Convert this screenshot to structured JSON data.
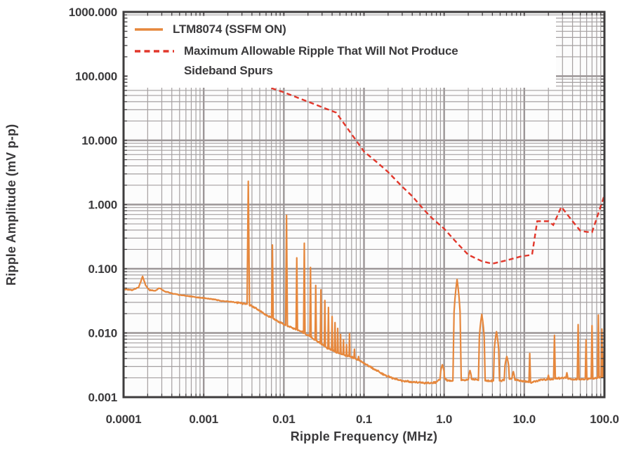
{
  "chart_data": {
    "type": "line",
    "title": "",
    "xlabel": "Ripple Frequency (MHz)",
    "ylabel": "Ripple Amplitude (mV p-p)",
    "x_scale": "log",
    "y_scale": "log",
    "xlim": [
      0.0001,
      100
    ],
    "ylim": [
      0.001,
      1000
    ],
    "x_ticks": [
      "0.0001",
      "0.001",
      "0.01",
      "0.1",
      "1.0",
      "10.0",
      "100.0"
    ],
    "y_ticks": [
      "1000.000",
      "100.000",
      "10.000",
      "1.000",
      "0.100",
      "0.010",
      "0.001"
    ],
    "grid": "log major+minor, full frame border with inward tick stubs",
    "legend_position": "top-left inside plot",
    "series": [
      {
        "name": "LTM8074 (SSFM ON)",
        "color": "#E6873C",
        "style": "solid",
        "baseline": [
          [
            0.0001,
            0.048
          ],
          [
            0.00013,
            0.0465
          ],
          [
            0.000155,
            0.052
          ],
          [
            0.000173,
            0.076
          ],
          [
            0.00019,
            0.054
          ],
          [
            0.00021,
            0.0465
          ],
          [
            0.00025,
            0.0455
          ],
          [
            0.00028,
            0.05
          ],
          [
            0.00033,
            0.044
          ],
          [
            0.0004,
            0.0415
          ],
          [
            0.0005,
            0.039
          ],
          [
            0.00065,
            0.0375
          ],
          [
            0.0008,
            0.036
          ],
          [
            0.001,
            0.035
          ],
          [
            0.0013,
            0.0335
          ],
          [
            0.0017,
            0.0315
          ],
          [
            0.0022,
            0.0305
          ],
          [
            0.0028,
            0.0295
          ],
          [
            0.0036,
            0.028
          ],
          [
            0.0042,
            0.0255
          ],
          [
            0.005,
            0.022
          ],
          [
            0.006,
            0.019
          ],
          [
            0.0072,
            0.017
          ],
          [
            0.009,
            0.0145
          ],
          [
            0.011,
            0.0128
          ],
          [
            0.014,
            0.0115
          ],
          [
            0.018,
            0.01
          ],
          [
            0.022,
            0.0085
          ],
          [
            0.028,
            0.007
          ],
          [
            0.035,
            0.0058
          ],
          [
            0.045,
            0.005
          ],
          [
            0.055,
            0.0046
          ],
          [
            0.07,
            0.0042
          ],
          [
            0.085,
            0.0038
          ],
          [
            0.1,
            0.0034
          ],
          [
            0.13,
            0.0028
          ],
          [
            0.17,
            0.0023
          ],
          [
            0.22,
            0.002
          ],
          [
            0.3,
            0.0018
          ],
          [
            0.45,
            0.0017
          ],
          [
            0.6,
            0.00165
          ],
          [
            0.8,
            0.0017
          ],
          [
            0.95,
            0.0021
          ],
          [
            1.1,
            0.0018
          ],
          [
            1.5,
            0.0018
          ],
          [
            2.2,
            0.0019
          ],
          [
            3.2,
            0.0018
          ],
          [
            5,
            0.0018
          ],
          [
            7,
            0.00195
          ],
          [
            9,
            0.0018
          ],
          [
            12,
            0.0017
          ],
          [
            16,
            0.00185
          ],
          [
            22,
            0.0019
          ],
          [
            30,
            0.002
          ],
          [
            40,
            0.0019
          ],
          [
            55,
            0.0019
          ],
          [
            70,
            0.00195
          ],
          [
            85,
            0.002
          ],
          [
            100,
            0.0021
          ]
        ],
        "spikes": [
          {
            "f": 0.0036,
            "v": 2.3,
            "w": 0.015,
            "s": 1
          },
          {
            "f": 0.0072,
            "v": 0.235,
            "w": 0.01,
            "s": 1
          },
          {
            "f": 0.0108,
            "v": 0.68,
            "w": 0.011,
            "s": 1
          },
          {
            "f": 0.0145,
            "v": 0.148,
            "w": 0.009,
            "s": 1
          },
          {
            "f": 0.018,
            "v": 0.25,
            "w": 0.009,
            "s": 1
          },
          {
            "f": 0.0215,
            "v": 0.105,
            "w": 0.008,
            "s": 1
          },
          {
            "f": 0.025,
            "v": 0.055,
            "w": 0.008,
            "s": 1
          },
          {
            "f": 0.029,
            "v": 0.047,
            "w": 0.008,
            "s": 1
          },
          {
            "f": 0.0325,
            "v": 0.032,
            "w": 0.007,
            "s": 1
          },
          {
            "f": 0.036,
            "v": 0.025,
            "w": 0.007,
            "s": 1
          },
          {
            "f": 0.04,
            "v": 0.018,
            "w": 0.007,
            "s": 1
          },
          {
            "f": 0.0435,
            "v": 0.0145,
            "w": 0.007,
            "s": 1
          },
          {
            "f": 0.047,
            "v": 0.0118,
            "w": 0.006,
            "s": 1
          },
          {
            "f": 0.051,
            "v": 0.0095,
            "w": 0.006,
            "s": 1
          },
          {
            "f": 0.0555,
            "v": 0.0078,
            "w": 0.006,
            "s": 1
          },
          {
            "f": 0.0605,
            "v": 0.0066,
            "w": 0.006,
            "s": 1
          },
          {
            "f": 0.066,
            "v": 0.0098,
            "w": 0.006,
            "s": 1
          },
          {
            "f": 0.076,
            "v": 0.0056,
            "w": 0.006,
            "s": 1
          },
          {
            "f": 0.0855,
            "v": 0.0043,
            "w": 0.006,
            "s": 1
          },
          {
            "f": 0.95,
            "v": 0.0032,
            "w": 0.028,
            "s": 0.5
          },
          {
            "f": 1.45,
            "v": 0.068,
            "w": 0.052,
            "s": 0.3
          },
          {
            "f": 2.1,
            "v": 0.0026,
            "w": 0.02,
            "s": 0.6
          },
          {
            "f": 2.95,
            "v": 0.0195,
            "w": 0.042,
            "s": 0.33
          },
          {
            "f": 4.5,
            "v": 0.0105,
            "w": 0.038,
            "s": 0.35
          },
          {
            "f": 6.05,
            "v": 0.0043,
            "w": 0.032,
            "s": 0.4
          },
          {
            "f": 7.3,
            "v": 0.0025,
            "w": 0.018,
            "s": 0.7
          },
          {
            "f": 11.7,
            "v": 0.0048,
            "w": 0.01,
            "s": 1
          },
          {
            "f": 20,
            "v": 0.0022,
            "w": 0.01,
            "s": 0.8
          },
          {
            "f": 23.8,
            "v": 0.0092,
            "w": 0.011,
            "s": 1
          },
          {
            "f": 34,
            "v": 0.0024,
            "w": 0.012,
            "s": 0.8
          },
          {
            "f": 47,
            "v": 0.0135,
            "w": 0.011,
            "s": 1
          },
          {
            "f": 59,
            "v": 0.0078,
            "w": 0.01,
            "s": 1
          },
          {
            "f": 70,
            "v": 0.013,
            "w": 0.01,
            "s": 1
          },
          {
            "f": 84,
            "v": 0.019,
            "w": 0.01,
            "s": 1
          },
          {
            "f": 93,
            "v": 0.0115,
            "w": 0.009,
            "s": 1
          },
          {
            "f": 99,
            "v": 0.006,
            "w": 0.008,
            "s": 1
          }
        ]
      },
      {
        "name": "Maximum Allowable Ripple That Will Not Produce Sideband Spurs",
        "color": "#E2372B",
        "style": "dashed",
        "points": [
          [
            0.007,
            65
          ],
          [
            0.01,
            56
          ],
          [
            0.02,
            40
          ],
          [
            0.045,
            27
          ],
          [
            0.07,
            12.5
          ],
          [
            0.1,
            6.7
          ],
          [
            0.15,
            4.4
          ],
          [
            0.2,
            3.2
          ],
          [
            0.3,
            1.9
          ],
          [
            0.4,
            1.35
          ],
          [
            0.55,
            0.85
          ],
          [
            0.7,
            0.62
          ],
          [
            1.0,
            0.42
          ],
          [
            1.5,
            0.24
          ],
          [
            2.0,
            0.165
          ],
          [
            3.0,
            0.13
          ],
          [
            4.0,
            0.12
          ],
          [
            6.0,
            0.135
          ],
          [
            9.0,
            0.155
          ],
          [
            12.5,
            0.165
          ],
          [
            14.5,
            0.55
          ],
          [
            20,
            0.55
          ],
          [
            23,
            0.48
          ],
          [
            29,
            0.92
          ],
          [
            40,
            0.55
          ],
          [
            50,
            0.39
          ],
          [
            60,
            0.375
          ],
          [
            70,
            0.37
          ],
          [
            100,
            1.4
          ]
        ]
      }
    ]
  },
  "legend": {
    "swatches": [
      "solid-line",
      "dashed-line"
    ]
  },
  "colors": {
    "series_ltm8074": "#E6873C",
    "series_max_ripple": "#E2372B",
    "grid_minor": "#A5A0A1",
    "grid_major": "#9C9697",
    "frame": "#3E3C3D",
    "text": "#3B3A3C",
    "plot_background": "#FCFCFC"
  }
}
